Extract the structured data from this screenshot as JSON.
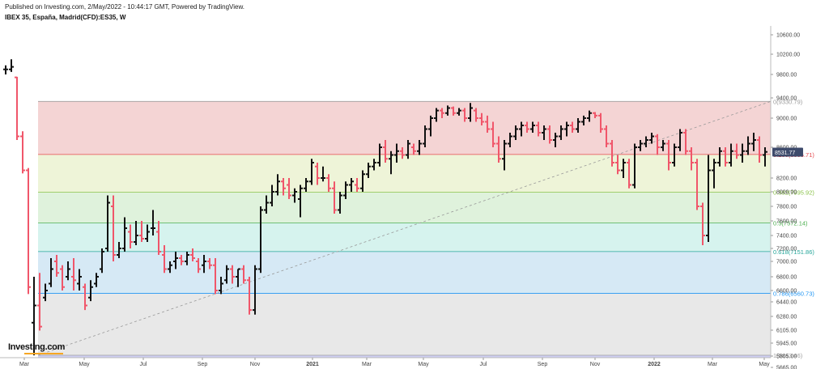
{
  "header": {
    "published": "Published on Investing.com, 2/May/2022 - 10:44:17 GMT, Powered by TradingView.",
    "symbol": "IBEX 35, España, Madrid(CFD):ES35, W"
  },
  "logo_text": "Investing.com",
  "colors": {
    "up": "#111111",
    "down": "#f0566a",
    "gridline": "#dddddd"
  },
  "chart_data": {
    "type": "ohlc",
    "y_ticks": [
      "10600.00",
      "10200.00",
      "9800.00",
      "9400.00",
      "9000.00",
      "8600.00",
      "8200.00",
      "8000.00",
      "7800.00",
      "7600.00",
      "7400.00",
      "7200.00",
      "7000.00",
      "6800.00",
      "6600.00",
      "6440.00",
      "6280.00",
      "6105.00",
      "5945.00",
      "5805.00",
      "5665.00"
    ],
    "x_ticks": [
      "Mar",
      "May",
      "Jul",
      "Sep",
      "Nov",
      "2021",
      "Mar",
      "May",
      "Jul",
      "Sep",
      "Nov",
      "2022",
      "Mar",
      "May"
    ],
    "last_price": "8531.77",
    "fib_levels": [
      {
        "ratio": 0,
        "label": "0(9330.79)",
        "color": "#9e9e9e"
      },
      {
        "ratio": 0.236,
        "label": "0.236(8506.71)",
        "color": "#e5484d"
      },
      {
        "ratio": 0.382,
        "label": "0.382(7995.92)",
        "color": "#8bc34a"
      },
      {
        "ratio": 0.5,
        "label": "0.5(7572.14)",
        "color": "#4caf50"
      },
      {
        "ratio": 0.618,
        "label": "0.618(7151.86)",
        "color": "#26a69a"
      },
      {
        "ratio": 0.786,
        "label": "0.786(6560.73)",
        "color": "#2196f3"
      },
      {
        "ratio": 1,
        "label": "1(5813.46)",
        "color": "#9e9e9e"
      }
    ],
    "bars": [
      [
        9900,
        9980,
        9800,
        9900
      ],
      [
        9900,
        10100,
        9850,
        9950
      ],
      [
        9750,
        9760,
        8700,
        8750
      ],
      [
        8750,
        8820,
        8260,
        8300
      ],
      [
        8300,
        8330,
        6550,
        6650
      ],
      [
        6200,
        6800,
        5813,
        6400
      ],
      [
        6400,
        6850,
        6100,
        6150
      ],
      [
        6500,
        6700,
        6450,
        6600
      ],
      [
        6700,
        7050,
        6650,
        6900
      ],
      [
        7000,
        7100,
        6800,
        6850
      ],
      [
        6900,
        6950,
        6600,
        6650
      ],
      [
        6800,
        7000,
        6750,
        6900
      ],
      [
        6800,
        7050,
        6600,
        6750
      ],
      [
        6700,
        6900,
        6600,
        6800
      ],
      [
        6650,
        6700,
        6350,
        6400
      ],
      [
        6500,
        6750,
        6450,
        6650
      ],
      [
        6700,
        6850,
        6650,
        6800
      ],
      [
        6900,
        7200,
        6850,
        7150
      ],
      [
        7200,
        7950,
        7150,
        7850
      ],
      [
        7800,
        7950,
        7000,
        7100
      ],
      [
        7100,
        7300,
        7050,
        7200
      ],
      [
        7200,
        7650,
        7150,
        7500
      ],
      [
        7450,
        7550,
        7200,
        7300
      ],
      [
        7300,
        7600,
        7250,
        7400
      ],
      [
        7400,
        7600,
        7300,
        7350
      ],
      [
        7350,
        7550,
        7300,
        7450
      ],
      [
        7500,
        7750,
        7400,
        7500
      ],
      [
        7450,
        7600,
        7100,
        7150
      ],
      [
        7100,
        7250,
        6850,
        6900
      ],
      [
        6900,
        7000,
        6850,
        6950
      ],
      [
        7000,
        7150,
        6900,
        7050
      ],
      [
        7050,
        7100,
        6950,
        7000
      ],
      [
        7000,
        7150,
        6950,
        7100
      ],
      [
        7100,
        7200,
        7000,
        7050
      ],
      [
        7000,
        7050,
        6850,
        6900
      ],
      [
        6950,
        7100,
        6850,
        7000
      ],
      [
        7000,
        7050,
        6900,
        6950
      ],
      [
        6950,
        7050,
        6550,
        6600
      ],
      [
        6600,
        6800,
        6550,
        6700
      ],
      [
        6750,
        6950,
        6700,
        6900
      ],
      [
        6900,
        6950,
        6700,
        6800
      ],
      [
        6800,
        6900,
        6650,
        6900
      ],
      [
        6900,
        6950,
        6700,
        6750
      ],
      [
        6750,
        6800,
        6300,
        6350
      ],
      [
        6350,
        6950,
        6300,
        6900
      ],
      [
        6900,
        7800,
        6850,
        7750
      ],
      [
        7750,
        7950,
        7700,
        7850
      ],
      [
        7850,
        8100,
        7800,
        8000
      ],
      [
        8000,
        8250,
        7950,
        8150
      ],
      [
        8150,
        8200,
        7950,
        8050
      ],
      [
        8100,
        8200,
        7900,
        7950
      ],
      [
        7950,
        8050,
        7850,
        8000
      ],
      [
        7900,
        8100,
        7650,
        8050
      ],
      [
        8050,
        8200,
        8000,
        8150
      ],
      [
        8150,
        8450,
        8100,
        8400
      ],
      [
        8350,
        8400,
        8100,
        8200
      ],
      [
        8200,
        8350,
        8150,
        8200
      ],
      [
        8200,
        8250,
        8000,
        8050
      ],
      [
        8050,
        8150,
        7700,
        7750
      ],
      [
        7750,
        8000,
        7700,
        7950
      ],
      [
        7950,
        8150,
        7900,
        8100
      ],
      [
        8100,
        8200,
        8000,
        8150
      ],
      [
        8100,
        8200,
        8000,
        8050
      ],
      [
        8050,
        8300,
        8000,
        8250
      ],
      [
        8250,
        8400,
        8200,
        8350
      ],
      [
        8350,
        8450,
        8300,
        8400
      ],
      [
        8400,
        8650,
        8350,
        8600
      ],
      [
        8600,
        8700,
        8400,
        8450
      ],
      [
        8450,
        8550,
        8250,
        8500
      ],
      [
        8500,
        8650,
        8400,
        8550
      ],
      [
        8550,
        8600,
        8450,
        8500
      ],
      [
        8500,
        8700,
        8450,
        8650
      ],
      [
        8600,
        8650,
        8500,
        8550
      ],
      [
        8550,
        8700,
        8500,
        8650
      ],
      [
        8650,
        8900,
        8600,
        8850
      ],
      [
        8850,
        9050,
        8750,
        9000
      ],
      [
        9000,
        9200,
        8950,
        9150
      ],
      [
        9150,
        9200,
        9000,
        9100
      ],
      [
        9100,
        9250,
        9050,
        9200
      ],
      [
        9200,
        9230,
        9050,
        9100
      ],
      [
        9100,
        9200,
        9050,
        9150
      ],
      [
        9150,
        9200,
        8950,
        9000
      ],
      [
        9000,
        9300,
        8950,
        9200
      ],
      [
        9150,
        9200,
        8950,
        9000
      ],
      [
        9000,
        9100,
        8900,
        8950
      ],
      [
        8950,
        9050,
        8800,
        8850
      ],
      [
        8850,
        8950,
        8600,
        8650
      ],
      [
        8650,
        8750,
        8400,
        8450
      ],
      [
        8450,
        8700,
        8300,
        8650
      ],
      [
        8650,
        8800,
        8600,
        8750
      ],
      [
        8750,
        8900,
        8700,
        8850
      ],
      [
        8850,
        8950,
        8750,
        8900
      ],
      [
        8900,
        8950,
        8800,
        8850
      ],
      [
        8850,
        8950,
        8800,
        8900
      ],
      [
        8900,
        8950,
        8750,
        8800
      ],
      [
        8800,
        8900,
        8700,
        8850
      ],
      [
        8850,
        8900,
        8650,
        8700
      ],
      [
        8700,
        8800,
        8600,
        8750
      ],
      [
        8750,
        8900,
        8700,
        8850
      ],
      [
        8850,
        8950,
        8750,
        8900
      ],
      [
        8900,
        8950,
        8800,
        8850
      ],
      [
        8850,
        9000,
        8800,
        8950
      ],
      [
        8950,
        9050,
        8900,
        9000
      ],
      [
        9000,
        9150,
        8950,
        9100
      ],
      [
        9100,
        9120,
        9000,
        9050
      ],
      [
        9050,
        9100,
        8800,
        8850
      ],
      [
        8850,
        8900,
        8600,
        8650
      ],
      [
        8650,
        8700,
        8350,
        8400
      ],
      [
        8400,
        8500,
        8250,
        8300
      ],
      [
        8300,
        8450,
        8200,
        8400
      ],
      [
        8400,
        8450,
        8050,
        8100
      ],
      [
        8100,
        8650,
        8050,
        8600
      ],
      [
        8600,
        8700,
        8550,
        8650
      ],
      [
        8650,
        8750,
        8600,
        8700
      ],
      [
        8700,
        8800,
        8650,
        8750
      ],
      [
        8750,
        8780,
        8500,
        8600
      ],
      [
        8600,
        8700,
        8550,
        8650
      ],
      [
        8650,
        8700,
        8300,
        8400
      ],
      [
        8400,
        8650,
        8350,
        8600
      ],
      [
        8600,
        8850,
        8550,
        8800
      ],
      [
        8800,
        8850,
        8500,
        8550
      ],
      [
        8550,
        8600,
        8300,
        8400
      ],
      [
        8400,
        8450,
        7750,
        7800
      ],
      [
        7800,
        7850,
        7250,
        7400
      ],
      [
        7400,
        8500,
        7300,
        8300
      ],
      [
        8300,
        8450,
        8050,
        8400
      ],
      [
        8400,
        8600,
        8350,
        8550
      ],
      [
        8550,
        8600,
        8350,
        8400
      ],
      [
        8400,
        8650,
        8350,
        8550
      ],
      [
        8550,
        8650,
        8450,
        8500
      ],
      [
        8500,
        8650,
        8400,
        8550
      ],
      [
        8550,
        8750,
        8500,
        8650
      ],
      [
        8650,
        8800,
        8550,
        8700
      ],
      [
        8700,
        8750,
        8400,
        8500
      ],
      [
        8500,
        8600,
        8350,
        8540
      ]
    ]
  }
}
